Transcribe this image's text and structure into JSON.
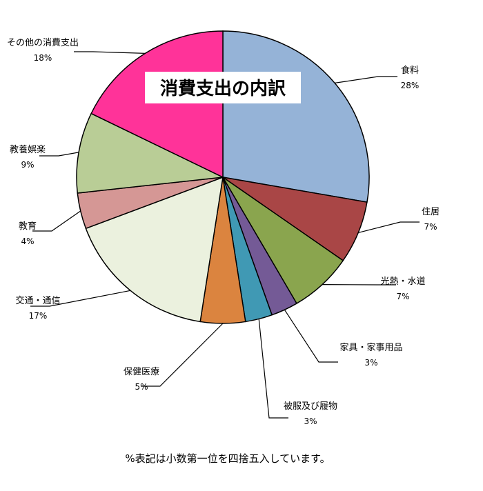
{
  "chart_data": {
    "type": "pie",
    "title": "消費支出の内訳",
    "slices": [
      {
        "label": "食料",
        "value": 28,
        "pct_label": "28%",
        "color": "#95b3d7"
      },
      {
        "label": "住居",
        "value": 7,
        "pct_label": "7%",
        "color": "#a94646"
      },
      {
        "label": "光熱・水道",
        "value": 7,
        "pct_label": "7%",
        "color": "#8aa54e"
      },
      {
        "label": "家具・家事用品",
        "value": 3,
        "pct_label": "3%",
        "color": "#745a96"
      },
      {
        "label": "被服及び履物",
        "value": 3,
        "pct_label": "3%",
        "color": "#4099b4"
      },
      {
        "label": "保健医療",
        "value": 5,
        "pct_label": "5%",
        "color": "#db843f"
      },
      {
        "label": "交通・通信",
        "value": 17,
        "pct_label": "17%",
        "color": "#ebf1de"
      },
      {
        "label": "教育",
        "value": 4,
        "pct_label": "4%",
        "color": "#d59795"
      },
      {
        "label": "教養娯楽",
        "value": 9,
        "pct_label": "9%",
        "color": "#b9cd96"
      },
      {
        "label": "その他の消費支出",
        "value": 18,
        "pct_label": "18%",
        "color": "#ff3399"
      }
    ],
    "footnote": "%表記は小数第一位を四捨五入しています。"
  }
}
